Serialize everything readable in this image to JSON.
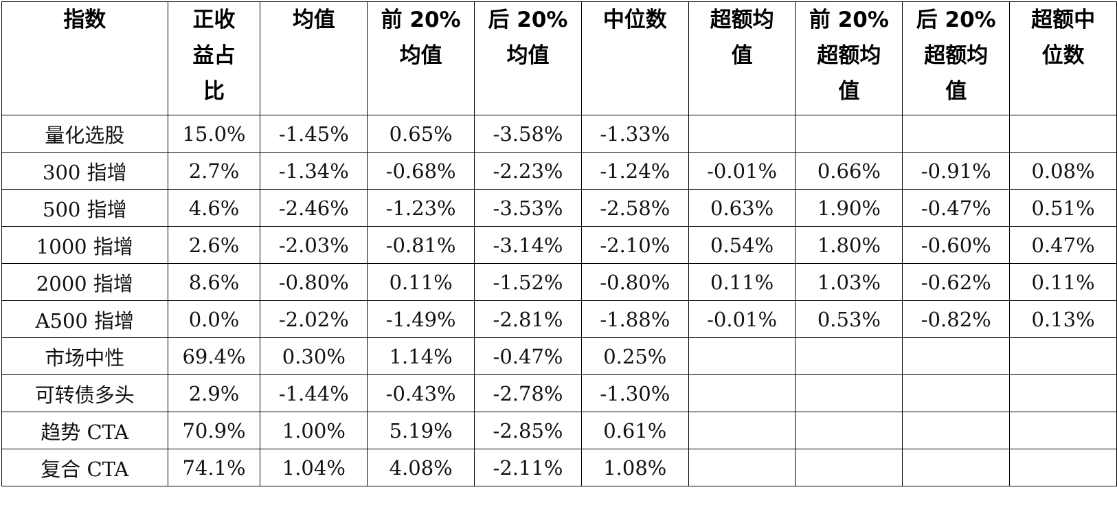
{
  "table": {
    "header": [
      [
        "指数"
      ],
      [
        "正收",
        "益占",
        "比"
      ],
      [
        "均值"
      ],
      [
        "前 20%",
        "均值"
      ],
      [
        "后 20%",
        "均值"
      ],
      [
        "中位数"
      ],
      [
        "超额均",
        "值"
      ],
      [
        "前 20%",
        "超额均",
        "值"
      ],
      [
        "后 20%",
        "超额均",
        "值"
      ],
      [
        "超额中",
        "位数"
      ]
    ],
    "rows": [
      [
        "量化选股",
        "15.0%",
        "-1.45%",
        "0.65%",
        "-3.58%",
        "-1.33%"
      ],
      [
        "300 指增",
        "2.7%",
        "-1.34%",
        "-0.68%",
        "-2.23%",
        "-1.24%",
        "-0.01%",
        "0.66%",
        "-0.91%",
        "0.08%"
      ],
      [
        "500 指增",
        "4.6%",
        "-2.46%",
        "-1.23%",
        "-3.53%",
        "-2.58%",
        "0.63%",
        "1.90%",
        "-0.47%",
        "0.51%"
      ],
      [
        "1000 指增",
        "2.6%",
        "-2.03%",
        "-0.81%",
        "-3.14%",
        "-2.10%",
        "0.54%",
        "1.80%",
        "-0.60%",
        "0.47%"
      ],
      [
        "2000 指增",
        "8.6%",
        "-0.80%",
        "0.11%",
        "-1.52%",
        "-0.80%",
        "0.11%",
        "1.03%",
        "-0.62%",
        "0.11%"
      ],
      [
        "A500 指增",
        "0.0%",
        "-2.02%",
        "-1.49%",
        "-2.81%",
        "-1.88%",
        "-0.01%",
        "0.53%",
        "-0.82%",
        "0.13%"
      ],
      [
        "市场中性",
        "69.4%",
        "0.30%",
        "1.14%",
        "-0.47%",
        "0.25%"
      ],
      [
        "可转债多头",
        "2.9%",
        "-1.44%",
        "-0.43%",
        "-2.78%",
        "-1.30%"
      ],
      [
        "趋势 CTA",
        "70.9%",
        "1.00%",
        "5.19%",
        "-2.85%",
        "0.61%"
      ],
      [
        "复合 CTA",
        "74.1%",
        "1.04%",
        "4.08%",
        "-2.11%",
        "1.08%"
      ]
    ]
  }
}
